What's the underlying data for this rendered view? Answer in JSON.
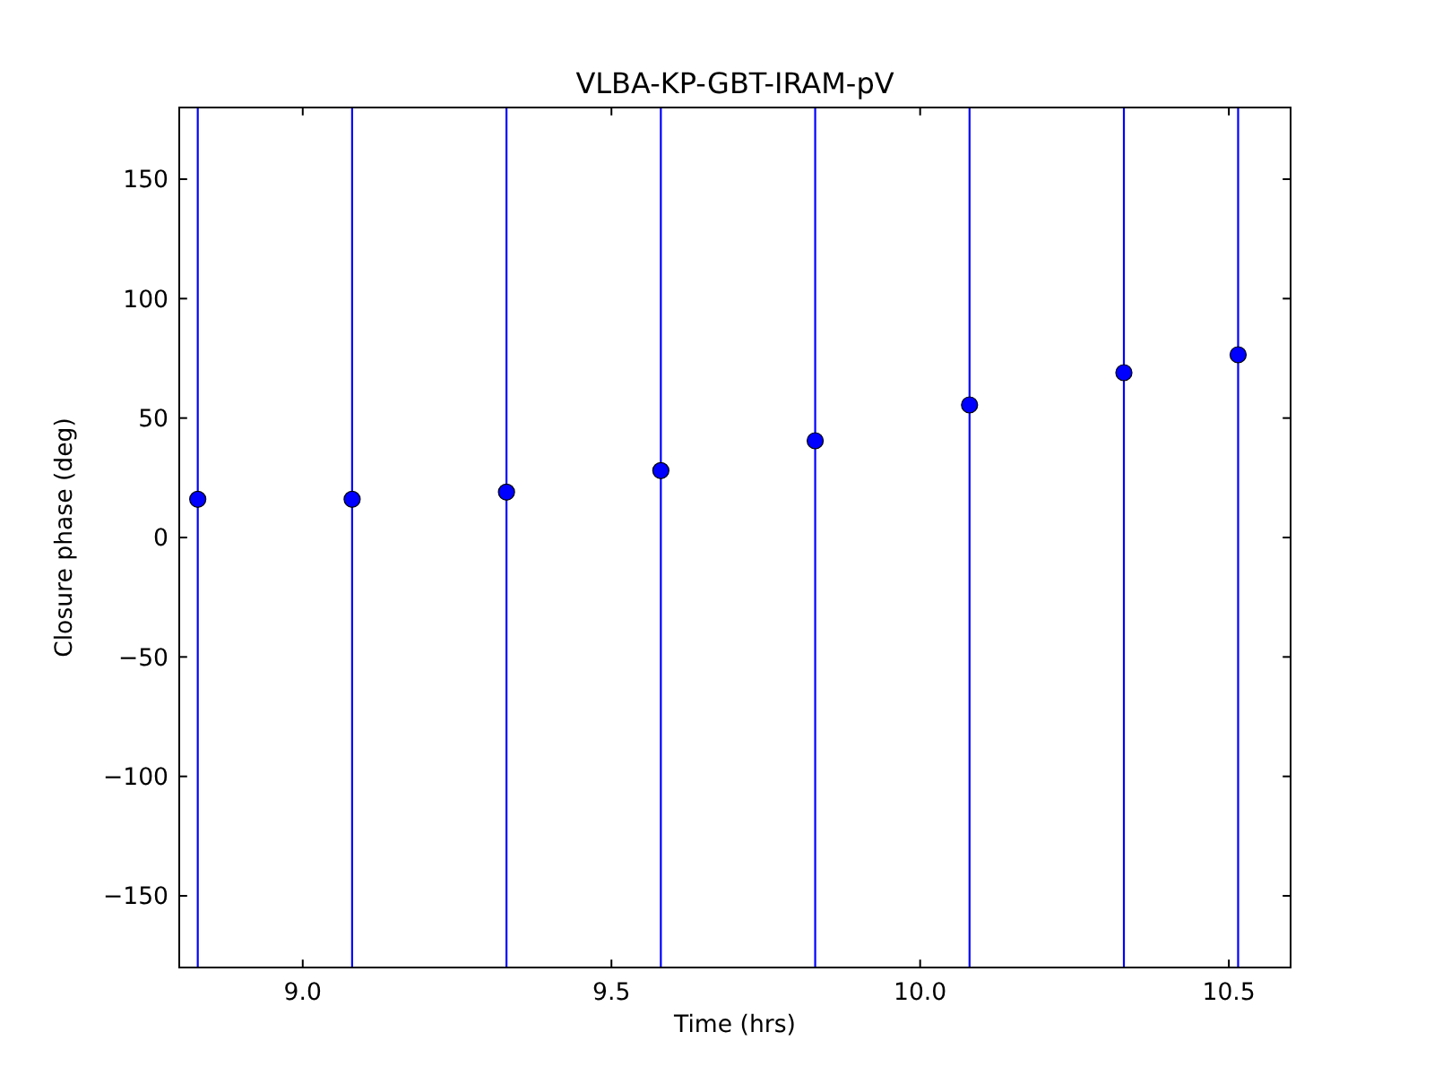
{
  "chart_data": {
    "type": "scatter",
    "title": "VLBA-KP-GBT-IRAM-pV",
    "xlabel": "Time (hrs)",
    "ylabel": "Closure phase (deg)",
    "x": [
      8.83,
      9.08,
      9.33,
      9.58,
      9.83,
      10.08,
      10.33,
      10.515
    ],
    "values": [
      16,
      16,
      19,
      28,
      40.5,
      55.5,
      69,
      76.5
    ],
    "errors": [
      [
        -180,
        180
      ],
      [
        -180,
        180
      ],
      [
        -180,
        180
      ],
      [
        -180,
        180
      ],
      [
        -180,
        180
      ],
      [
        -180,
        180
      ],
      [
        -180,
        180
      ],
      [
        -180,
        180
      ]
    ],
    "color": "#0000ff",
    "marker": "circle",
    "xlim": [
      8.8,
      10.6
    ],
    "xticks": [
      {
        "value": 9,
        "label": "9.0"
      },
      9.5,
      {
        "value": 10,
        "label": "10.0"
      },
      10.5
    ],
    "ylim": [
      -180,
      180
    ],
    "yticks": [
      {
        "value": -150,
        "label": "−150"
      },
      {
        "value": -100,
        "label": "−100"
      },
      {
        "value": -50,
        "label": "−50"
      },
      0,
      50,
      100,
      150
    ],
    "grid": false
  }
}
